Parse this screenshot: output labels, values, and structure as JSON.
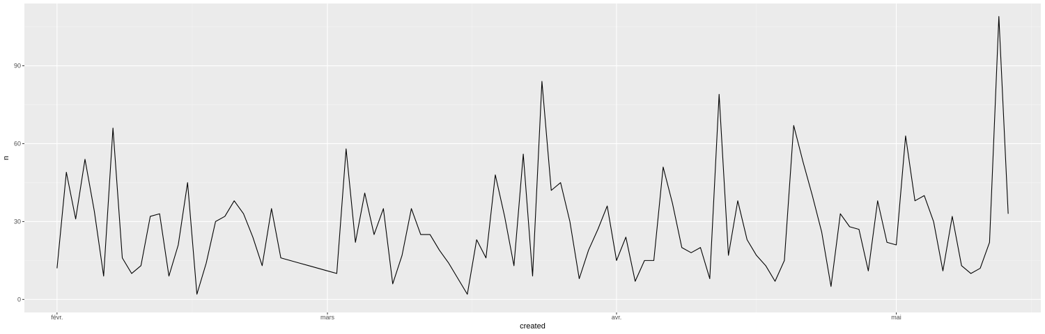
{
  "chart_data": {
    "type": "line",
    "title": "",
    "xlabel": "created",
    "ylabel": "n",
    "x": [
      1,
      2,
      3,
      4,
      5,
      6,
      7,
      8,
      9,
      10,
      11,
      12,
      13,
      14,
      15,
      16,
      17,
      18,
      19,
      20,
      21,
      22,
      23,
      24,
      25,
      26,
      27,
      28,
      29,
      30,
      31,
      32,
      33,
      34,
      35,
      36,
      37,
      38,
      39,
      40,
      41,
      42,
      43,
      44,
      45,
      46,
      47,
      48,
      49,
      50,
      51,
      52,
      53,
      54,
      55,
      56,
      57,
      58,
      59,
      60,
      61,
      62,
      63,
      64,
      65,
      66,
      67,
      68,
      69,
      70,
      71,
      72,
      73,
      74,
      75,
      76,
      77,
      78,
      79,
      80,
      81,
      82,
      83,
      84,
      85,
      86,
      87,
      88,
      89,
      90,
      91,
      92,
      93,
      94,
      95,
      96,
      97,
      98,
      99,
      100,
      101,
      102,
      103
    ],
    "y": [
      12,
      49,
      31,
      54,
      34,
      9,
      66,
      16,
      10,
      13,
      32,
      33,
      9,
      21,
      45,
      2,
      14,
      30,
      32,
      38,
      33,
      24,
      13,
      35,
      16,
      15,
      14,
      13,
      12,
      11,
      10,
      58,
      22,
      41,
      25,
      35,
      6,
      17,
      35,
      25,
      25,
      19,
      14,
      8,
      2,
      23,
      16,
      48,
      32,
      13,
      56,
      9,
      84,
      42,
      45,
      30,
      8,
      19,
      27,
      36,
      15,
      24,
      7,
      15,
      15,
      51,
      37,
      20,
      18,
      20,
      8,
      79,
      17,
      38,
      23,
      17,
      13,
      7,
      15,
      67,
      53,
      40,
      26,
      5,
      33,
      28,
      27,
      11,
      38,
      22,
      21,
      63,
      38,
      40,
      30,
      11,
      32,
      13,
      10,
      12,
      22,
      109,
      33
    ],
    "series": [
      {
        "name": "n",
        "values": [
          12,
          49,
          31,
          54,
          34,
          9,
          66,
          16,
          10,
          13,
          32,
          33,
          9,
          21,
          45,
          2,
          14,
          30,
          32,
          38,
          33,
          24,
          13,
          35,
          16,
          15,
          14,
          13,
          12,
          11,
          10,
          58,
          22,
          41,
          25,
          35,
          6,
          17,
          35,
          25,
          25,
          19,
          14,
          8,
          2,
          23,
          16,
          48,
          32,
          13,
          56,
          9,
          84,
          42,
          45,
          30,
          8,
          19,
          27,
          36,
          15,
          24,
          7,
          15,
          15,
          51,
          37,
          20,
          18,
          20,
          8,
          79,
          17,
          38,
          23,
          17,
          13,
          7,
          15,
          67,
          53,
          40,
          26,
          5,
          33,
          28,
          27,
          11,
          38,
          22,
          21,
          63,
          38,
          40,
          30,
          11,
          32,
          13,
          10,
          12,
          22,
          109,
          33
        ]
      }
    ],
    "xlim": [
      -2.5,
      106.5
    ],
    "ylim": [
      -5,
      114
    ],
    "x_ticks": [
      {
        "label": "févr.",
        "value": 1
      },
      {
        "label": "mars",
        "value": 30
      },
      {
        "label": "avr.",
        "value": 61
      },
      {
        "label": "mai",
        "value": 91
      }
    ],
    "x_minor": [
      15.5,
      45.5,
      76,
      105.5
    ],
    "y_ticks": [
      0,
      30,
      60,
      90
    ],
    "y_minor": [
      15,
      45,
      75,
      105
    ],
    "grid": true,
    "legend": "none",
    "colors": {
      "panel_bg": "#ebebeb",
      "grid_major": "#ffffff",
      "grid_minor": "#f5f5f5",
      "line": "#000000",
      "tick": "#333333",
      "tick_text": "#4d4d4d"
    }
  }
}
